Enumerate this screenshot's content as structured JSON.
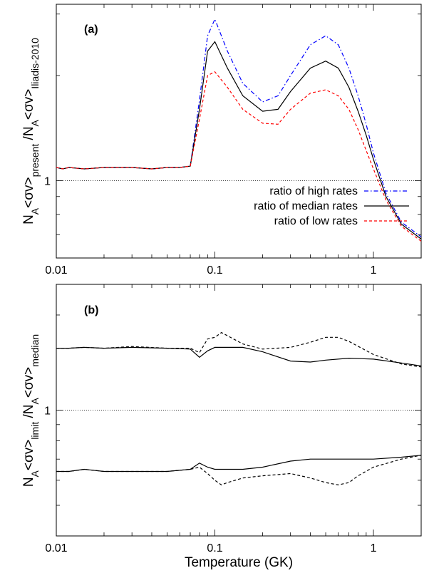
{
  "chart_data": [
    {
      "type": "line",
      "panel_label": "(a)",
      "ylabel": {
        "main": "N",
        "parts": [
          "A",
          "<σv>",
          "present",
          " /N",
          "A",
          "<σv>",
          "Iliadis-2010"
        ]
      },
      "xlabel": "",
      "xscale": "log",
      "yscale": "log",
      "xlim": [
        0.01,
        2.0
      ],
      "ylim": [
        0.6,
        3.2
      ],
      "x_ticks": [
        "0.01",
        "0.1",
        "1"
      ],
      "y_ticks": [
        "1"
      ],
      "reference_line": 1,
      "legend_position": "bottom-right",
      "series": [
        {
          "name": "ratio of high rates",
          "color": "#0000ff",
          "dash": "dash-dot",
          "x": [
            0.01,
            0.011,
            0.012,
            0.015,
            0.02,
            0.03,
            0.04,
            0.05,
            0.06,
            0.07,
            0.08,
            0.09,
            0.1,
            0.12,
            0.15,
            0.2,
            0.25,
            0.3,
            0.4,
            0.5,
            0.6,
            0.7,
            0.8,
            0.9,
            1.0,
            1.2,
            1.5,
            2.0
          ],
          "y": [
            1.09,
            1.08,
            1.09,
            1.08,
            1.09,
            1.09,
            1.08,
            1.09,
            1.09,
            1.1,
            1.7,
            2.6,
            2.9,
            2.35,
            1.9,
            1.68,
            1.75,
            2.0,
            2.45,
            2.6,
            2.45,
            2.1,
            1.75,
            1.45,
            1.2,
            0.92,
            0.76,
            0.69
          ]
        },
        {
          "name": "ratio of median rates",
          "color": "#000000",
          "dash": "solid",
          "x": [
            0.01,
            0.011,
            0.012,
            0.015,
            0.02,
            0.03,
            0.04,
            0.05,
            0.06,
            0.07,
            0.08,
            0.09,
            0.1,
            0.12,
            0.15,
            0.2,
            0.25,
            0.3,
            0.4,
            0.5,
            0.6,
            0.7,
            0.8,
            0.9,
            1.0,
            1.2,
            1.5,
            2.0
          ],
          "y": [
            1.09,
            1.08,
            1.09,
            1.08,
            1.09,
            1.09,
            1.08,
            1.09,
            1.09,
            1.1,
            1.6,
            2.35,
            2.5,
            2.1,
            1.75,
            1.58,
            1.6,
            1.8,
            2.1,
            2.2,
            2.1,
            1.85,
            1.58,
            1.35,
            1.15,
            0.9,
            0.75,
            0.68
          ]
        },
        {
          "name": "ratio of low rates",
          "color": "#ff0000",
          "dash": "dashed",
          "x": [
            0.01,
            0.011,
            0.012,
            0.015,
            0.02,
            0.03,
            0.04,
            0.05,
            0.06,
            0.07,
            0.08,
            0.09,
            0.1,
            0.12,
            0.15,
            0.2,
            0.25,
            0.3,
            0.4,
            0.5,
            0.6,
            0.7,
            0.8,
            0.9,
            1.0,
            1.2,
            1.5,
            2.0
          ],
          "y": [
            1.09,
            1.08,
            1.09,
            1.08,
            1.09,
            1.09,
            1.08,
            1.09,
            1.09,
            1.1,
            1.5,
            2.0,
            2.05,
            1.85,
            1.6,
            1.46,
            1.45,
            1.6,
            1.78,
            1.82,
            1.75,
            1.6,
            1.4,
            1.22,
            1.08,
            0.88,
            0.74,
            0.67
          ]
        }
      ]
    },
    {
      "type": "line",
      "panel_label": "(b)",
      "ylabel": {
        "main": "N",
        "parts": [
          "A",
          "<σv>",
          "limit",
          " /N",
          "A",
          "<σv>",
          "median"
        ]
      },
      "xlabel": "Temperature (GK)",
      "xscale": "log",
      "yscale": "log",
      "xlim": [
        0.01,
        2.0
      ],
      "ylim": [
        0.4,
        2.5
      ],
      "x_ticks": [
        "0.01",
        "0.1",
        "1"
      ],
      "y_ticks": [
        "1"
      ],
      "reference_line": 1,
      "legend_position": "none",
      "series": [
        {
          "name": "",
          "color": "#000000",
          "dash": "solid",
          "x": [
            0.01,
            0.012,
            0.015,
            0.02,
            0.03,
            0.05,
            0.07,
            0.08,
            0.09,
            0.1,
            0.12,
            0.15,
            0.2,
            0.3,
            0.4,
            0.5,
            0.7,
            1.0,
            1.5,
            2.0
          ],
          "y": [
            1.57,
            1.57,
            1.58,
            1.57,
            1.58,
            1.57,
            1.56,
            1.47,
            1.54,
            1.58,
            1.58,
            1.58,
            1.53,
            1.43,
            1.42,
            1.44,
            1.46,
            1.45,
            1.41,
            1.38
          ]
        },
        {
          "name": "",
          "color": "#000000",
          "dash": "dashed",
          "x": [
            0.01,
            0.012,
            0.015,
            0.02,
            0.03,
            0.05,
            0.07,
            0.08,
            0.09,
            0.1,
            0.11,
            0.12,
            0.15,
            0.2,
            0.3,
            0.4,
            0.5,
            0.6,
            0.7,
            1.0,
            1.5,
            2.0
          ],
          "y": [
            1.57,
            1.57,
            1.58,
            1.57,
            1.59,
            1.57,
            1.57,
            1.52,
            1.68,
            1.7,
            1.76,
            1.72,
            1.62,
            1.56,
            1.58,
            1.64,
            1.7,
            1.7,
            1.65,
            1.5,
            1.4,
            1.37
          ]
        },
        {
          "name": "",
          "color": "#000000",
          "dash": "solid",
          "x": [
            0.01,
            0.012,
            0.015,
            0.02,
            0.03,
            0.05,
            0.07,
            0.08,
            0.09,
            0.1,
            0.12,
            0.15,
            0.2,
            0.3,
            0.4,
            0.5,
            0.7,
            1.0,
            1.5,
            2.0
          ],
          "y": [
            0.64,
            0.64,
            0.65,
            0.64,
            0.64,
            0.64,
            0.65,
            0.68,
            0.66,
            0.65,
            0.65,
            0.65,
            0.66,
            0.69,
            0.7,
            0.7,
            0.7,
            0.7,
            0.71,
            0.72
          ]
        },
        {
          "name": "",
          "color": "#000000",
          "dash": "dashed",
          "x": [
            0.01,
            0.012,
            0.015,
            0.02,
            0.03,
            0.05,
            0.07,
            0.08,
            0.09,
            0.1,
            0.11,
            0.12,
            0.15,
            0.2,
            0.3,
            0.4,
            0.5,
            0.6,
            0.7,
            0.8,
            1.0,
            1.5,
            2.0
          ],
          "y": [
            0.64,
            0.64,
            0.65,
            0.64,
            0.64,
            0.64,
            0.65,
            0.66,
            0.63,
            0.6,
            0.58,
            0.59,
            0.61,
            0.62,
            0.63,
            0.61,
            0.59,
            0.58,
            0.59,
            0.62,
            0.66,
            0.7,
            0.72
          ]
        }
      ]
    }
  ]
}
